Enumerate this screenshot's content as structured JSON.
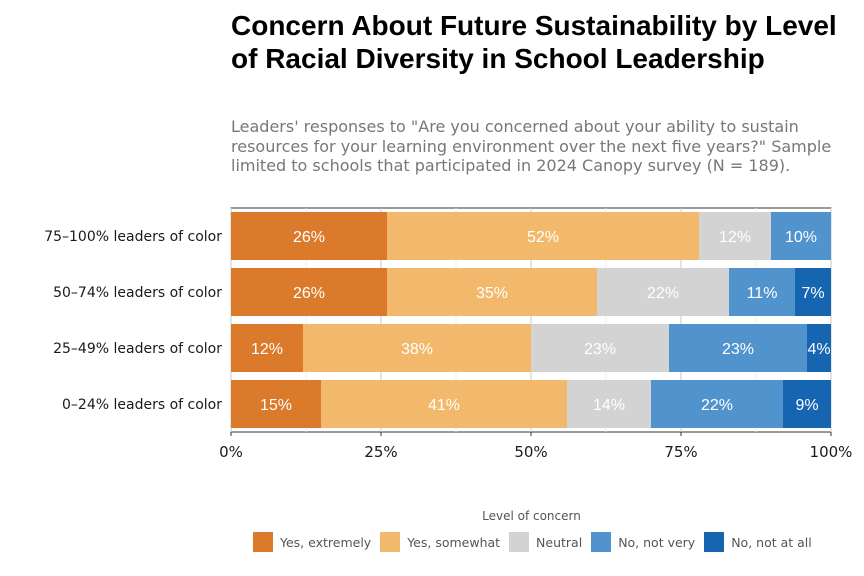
{
  "title": "Concern About Future Sustainability by Level of Racial Diversity in School Leadership",
  "subtitle": "Leaders' responses to \"Are you concerned about your ability to sustain resources for your learning environment over the next five years?\" Sample limited to schools that participated in 2024 Canopy survey (N = 189).",
  "chart_data": {
    "type": "bar",
    "orientation": "horizontal",
    "stacked": true,
    "categories": [
      "75–100% leaders of color",
      "50–74% leaders of color",
      "25–49% leaders of color",
      "0–24% leaders of color"
    ],
    "series": [
      {
        "name": "Yes, extremely",
        "color": "#db7a2b",
        "values": [
          26,
          26,
          12,
          15
        ],
        "labels": [
          "26%",
          "26%",
          "12%",
          "15%"
        ]
      },
      {
        "name": "Yes, somewhat",
        "color": "#f2b86b",
        "values": [
          52,
          35,
          38,
          41
        ],
        "labels": [
          "52%",
          "35%",
          "38%",
          "41%"
        ]
      },
      {
        "name": "Neutral",
        "color": "#d3d3d3",
        "values": [
          12,
          22,
          23,
          14
        ],
        "labels": [
          "12%",
          "22%",
          "23%",
          "14%"
        ]
      },
      {
        "name": "No, not very",
        "color": "#5193cd",
        "values": [
          10,
          11,
          23,
          22
        ],
        "labels": [
          "10%",
          "11%",
          "23%",
          "22%"
        ]
      },
      {
        "name": "No, not at all",
        "color": "#1565b0",
        "values": [
          0,
          7,
          4,
          9
        ],
        "labels": [
          "",
          "7%",
          "4%",
          "9%"
        ]
      }
    ],
    "xticks": [
      "0%",
      "25%",
      "50%",
      "75%",
      "100%"
    ],
    "xlim": [
      0,
      100
    ],
    "legend_title": "Level of concern",
    "legend_position": "bottom",
    "grid": true
  }
}
